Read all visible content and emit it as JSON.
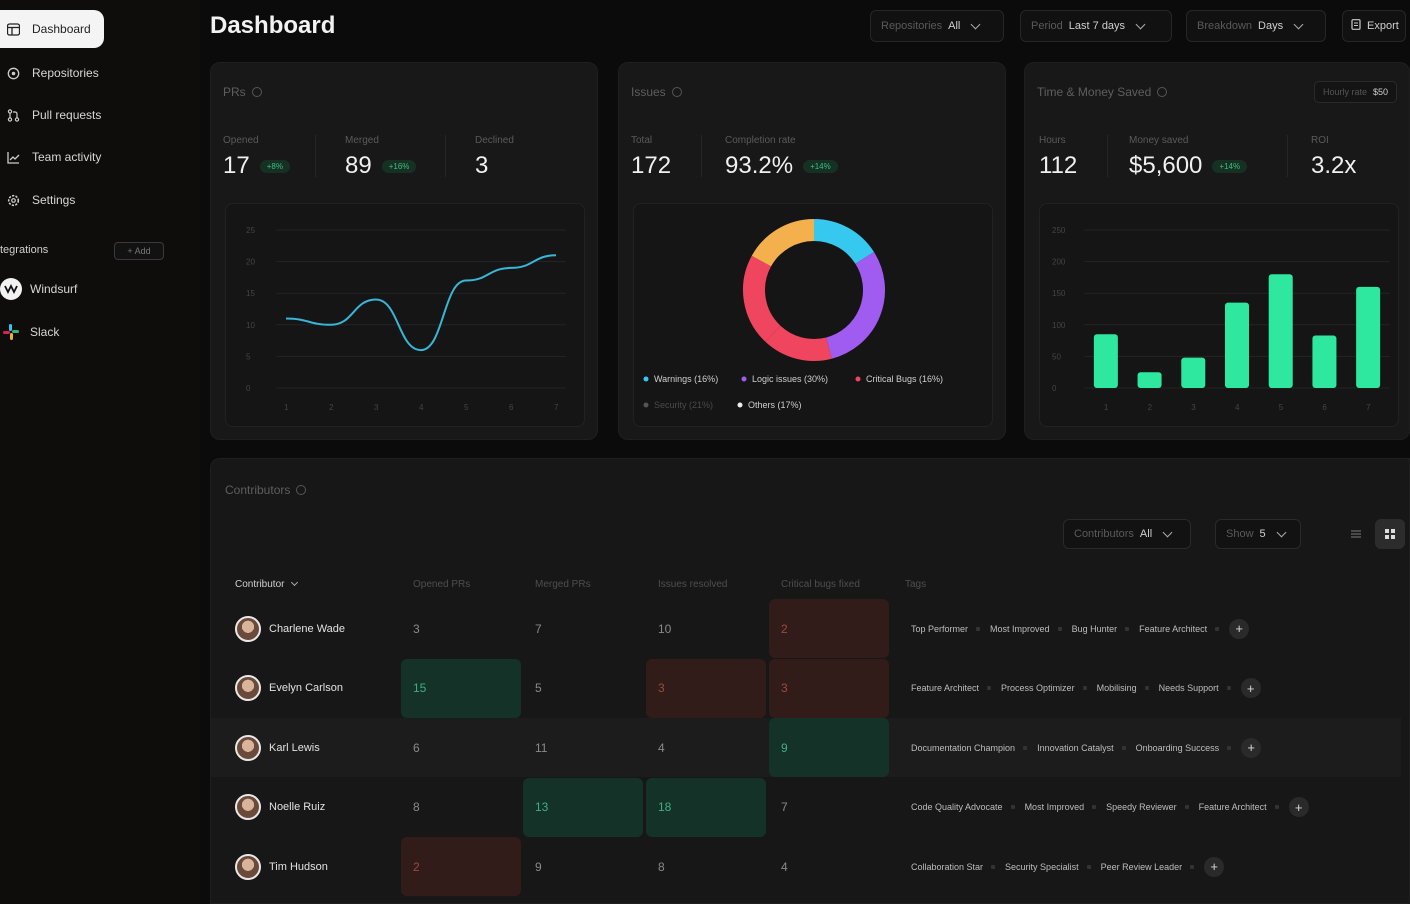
{
  "sidebar": {
    "items": [
      {
        "label": "Dashboard",
        "icon": "dashboard-icon",
        "active": true
      },
      {
        "label": "Repositories",
        "icon": "repositories-icon"
      },
      {
        "label": "Pull requests",
        "icon": "pull-request-icon"
      },
      {
        "label": "Team activity",
        "icon": "chart-icon"
      },
      {
        "label": "Settings",
        "icon": "gear-icon"
      }
    ],
    "integrations_label": "tegrations",
    "add_label": "+ Add",
    "integrations": [
      {
        "label": "Windsurf",
        "icon": "windsurf-logo-icon"
      },
      {
        "label": "Slack",
        "icon": "slack-logo-icon"
      }
    ]
  },
  "header": {
    "title": "Dashboard",
    "filters": [
      {
        "label": "Repositories",
        "value": "All"
      },
      {
        "label": "Period",
        "value": "Last 7 days"
      },
      {
        "label": "Breakdown",
        "value": "Days"
      }
    ],
    "export_label": "Export"
  },
  "cards": {
    "prs": {
      "title": "PRs",
      "stats": [
        {
          "label": "Opened",
          "value": "17",
          "badge": "+8%"
        },
        {
          "label": "Merged",
          "value": "89",
          "badge": "+16%"
        },
        {
          "label": "Declined",
          "value": "3",
          "badge": ""
        }
      ]
    },
    "issues": {
      "title": "Issues",
      "stats": [
        {
          "label": "Total",
          "value": "172",
          "badge": ""
        },
        {
          "label": "Completion rate",
          "value": "93.2%",
          "badge": "+14%"
        }
      ]
    },
    "time": {
      "title": "Time & Money Saved",
      "chip_label": "Hourly rate",
      "chip_value": "$50",
      "stats": [
        {
          "label": "Hours",
          "value": "112",
          "badge": ""
        },
        {
          "label": "Money saved",
          "value": "$5,600",
          "badge": "+14%"
        },
        {
          "label": "ROI",
          "value": "3.2x",
          "badge": ""
        }
      ]
    }
  },
  "chart_data": [
    {
      "type": "line",
      "x": [
        "1",
        "2",
        "3",
        "4",
        "5",
        "6",
        "7"
      ],
      "values": [
        11,
        10,
        14,
        6,
        17,
        19,
        21
      ],
      "yticks": [
        "0",
        "5",
        "10",
        "15",
        "20",
        "25"
      ],
      "ylim": [
        0,
        25
      ],
      "color": "#38b6d8"
    },
    {
      "type": "pie",
      "variant": "donut",
      "slices": [
        {
          "label": "Warnings (16%)",
          "value": 16,
          "color": "#37c8f0"
        },
        {
          "label": "Logic issues (30%)",
          "value": 30,
          "color": "#a05cf0"
        },
        {
          "label": "Critical Bugs (16%)",
          "value": 16,
          "color": "#f0455e"
        },
        {
          "label": "Security (21%)",
          "value": 21,
          "color": "#f0455e"
        },
        {
          "label": "Others (17%)",
          "value": 17,
          "color": "#f4b04c"
        }
      ]
    },
    {
      "type": "bar",
      "categories": [
        "1",
        "2",
        "3",
        "4",
        "5",
        "6",
        "7"
      ],
      "values": [
        85,
        25,
        48,
        135,
        180,
        83,
        160
      ],
      "yticks": [
        "0",
        "50",
        "100",
        "150",
        "200",
        "250"
      ],
      "ylim": [
        0,
        250
      ],
      "color": "#2fe8a0"
    }
  ],
  "contributors": {
    "title": "Contributors",
    "filters": [
      {
        "label": "Contributors",
        "value": "All"
      },
      {
        "label": "Show",
        "value": "5"
      }
    ],
    "columns": [
      "Contributor",
      "Opened PRs",
      "Merged PRs",
      "Issues resolved",
      "Critical bugs fixed",
      "Tags"
    ],
    "rows": [
      {
        "name": "Charlene Wade",
        "opened": "3",
        "merged": "7",
        "issues": "10",
        "critical": "2",
        "hl": [
          "",
          "",
          "",
          "red"
        ],
        "tags": [
          "Top Performer",
          "Most Improved",
          "Bug Hunter",
          "Feature Architect"
        ]
      },
      {
        "name": "Evelyn Carlson",
        "opened": "15",
        "merged": "5",
        "issues": "3",
        "critical": "3",
        "hl": [
          "green",
          "",
          "red",
          "red"
        ],
        "tags": [
          "Feature Architect",
          "Process Optimizer",
          "Mobilising",
          "Needs Support"
        ]
      },
      {
        "name": "Karl Lewis",
        "opened": "6",
        "merged": "11",
        "issues": "4",
        "critical": "9",
        "hl": [
          "",
          "",
          "",
          "green"
        ],
        "tags": [
          "Documentation Champion",
          "Innovation Catalyst",
          "Onboarding Success"
        ]
      },
      {
        "name": "Noelle Ruiz",
        "opened": "8",
        "merged": "13",
        "issues": "18",
        "critical": "7",
        "hl": [
          "",
          "green",
          "green",
          ""
        ],
        "tags": [
          "Code Quality Advocate",
          "Most Improved",
          "Speedy Reviewer",
          "Feature Architect"
        ]
      },
      {
        "name": "Tim Hudson",
        "opened": "2",
        "merged": "9",
        "issues": "8",
        "critical": "4",
        "hl": [
          "red",
          "",
          "",
          ""
        ],
        "tags": [
          "Collaboration Star",
          "Security Specialist",
          "Peer Review Leader"
        ]
      }
    ]
  }
}
